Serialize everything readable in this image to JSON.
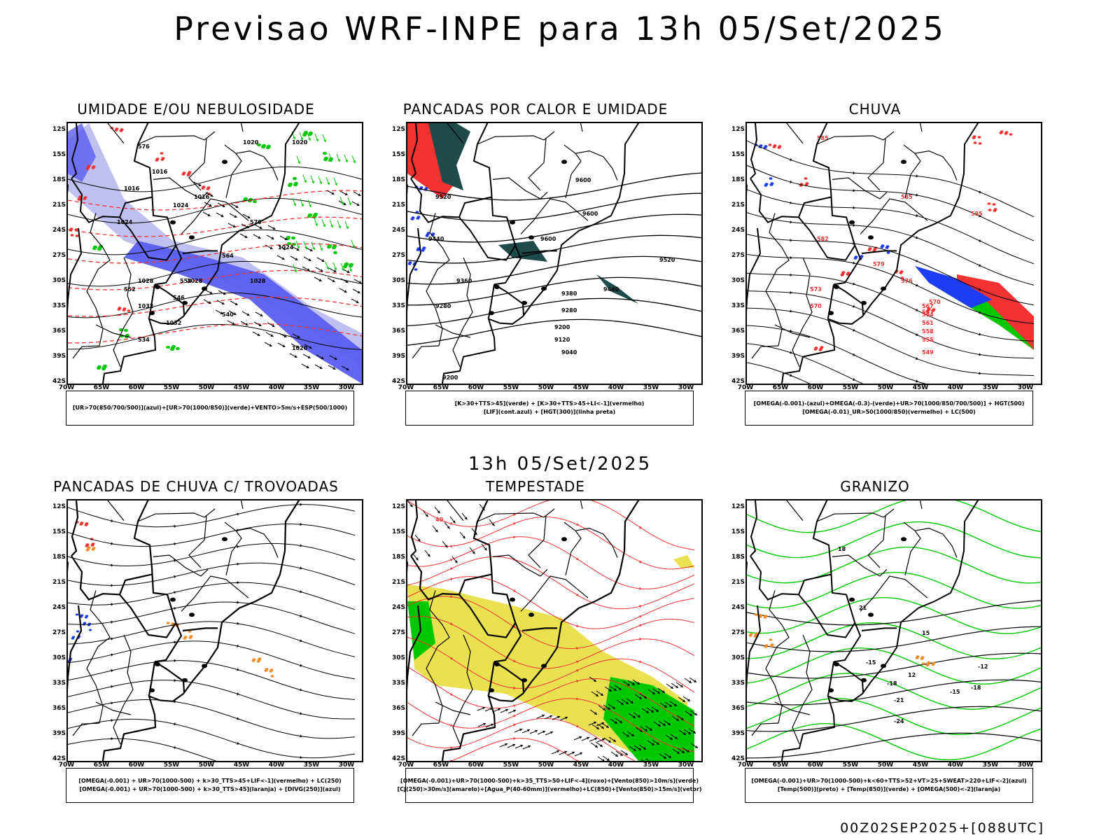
{
  "main_title": "Previsao WRF-INPE  para 13h 05/Set/2025",
  "mid_title": "13h 05/Set/2025",
  "footer_stamp": "00Z02SEP2025+[088UTC]",
  "lat_labels": [
    "12S",
    "15S",
    "18S",
    "21S",
    "24S",
    "27S",
    "30S",
    "33S",
    "36S",
    "39S",
    "42S"
  ],
  "lon_labels": [
    "70W",
    "65W",
    "60W",
    "55W",
    "50W",
    "45W",
    "40W",
    "35W",
    "30W"
  ],
  "colors": {
    "blue_humidity": "#5a5ef0",
    "light_blue_humidity": "#b8b8ee",
    "green": "#00c800",
    "red": "#f03232",
    "dark_teal": "#1e4a4a",
    "blue": "#1e3cf0",
    "orange": "#f08c28",
    "yellow": "#e6dc32",
    "black": "#000000"
  },
  "panels": [
    {
      "title": "UMIDADE E/OU NEBULOSIDADE",
      "legend": [
        "[UR>70(850/700/500)](azul)+[UR>70(1000/850)](verde)+VENTO>5m/s+ESP(500/1000)"
      ],
      "contour_labels": [
        "1016",
        "1016",
        "1016",
        "1020",
        "1020",
        "1024",
        "1024",
        "1024",
        "1028",
        "1028",
        "1028",
        "1032",
        "1032",
        "1020",
        "576",
        "570",
        "564",
        "558",
        "552",
        "546",
        "540",
        "534"
      ]
    },
    {
      "title": "PANCADAS POR CALOR E UMIDADE",
      "legend": [
        "[K>30+TTS>45](verde) + [K>30+TTS>45+LI<-1](vermelho)",
        "[LIF](cont.azul) + [HGT(300)](linha preta)"
      ],
      "contour_labels": [
        "9600",
        "9600",
        "9520",
        "9440",
        "9600",
        "9520",
        "9440",
        "9360",
        "9280",
        "9380",
        "9280",
        "9200",
        "9120",
        "9040",
        "9200"
      ]
    },
    {
      "title": "CHUVA",
      "legend": [
        "[OMEGA(-0.001)-(azul)+OMEGA(-0.3)-(verde)+UR>70(1000/850/700/500)] + HGT(500)",
        "[OMEGA(-0.01)_UR>50(1000/850)(vermelho) + LC(500)"
      ],
      "contour_labels": [
        "585",
        "585",
        "585",
        "582",
        "579",
        "576",
        "573",
        "570",
        "567",
        "564",
        "561",
        "558",
        "555",
        "549",
        "570",
        "567"
      ]
    },
    {
      "title": "PANCADAS DE CHUVA C/ TROVOADAS",
      "legend": [
        "[OMEGA(-0.001) + UR>70(1000-500) + k>30_TTS>45+LIF<-1](vermelho) + LC(250)",
        "[OMEGA(-0.001) + UR>70(1000-500) + k>30_TTS>45](laranja) + [DIVG(250)](azul)"
      ],
      "contour_labels": []
    },
    {
      "title": "TEMPESTADE",
      "legend": [
        "[OMEGA(-0.001)+UR>70(1000-500)+k>35_TTS>50+LIF<-4](roxo)+[Vento(850)>10m/s](verde)",
        "[CJ(250)>30m/s](amarelo)+[Agua_P(40-60mm)](vermelho)+LC(850)+[Vento(850)>15m/s](vetor)"
      ],
      "contour_labels": [
        "40"
      ]
    },
    {
      "title": "GRANIZO",
      "legend": [
        "[OMEGA(-0.001)+UR>70(1000-500)+k<60+TTS>52+VT>25+SWEAT>220+LIF<-2](azul)",
        "[Temp(500)](preto) + [Temp(850)](verde) + [OMEGA(500)<-2](laranja)"
      ],
      "contour_labels": [
        "-12",
        "-15",
        "-18",
        "-21",
        "-24",
        "-18",
        "-15",
        "12",
        "15",
        "18",
        "21"
      ]
    }
  ]
}
